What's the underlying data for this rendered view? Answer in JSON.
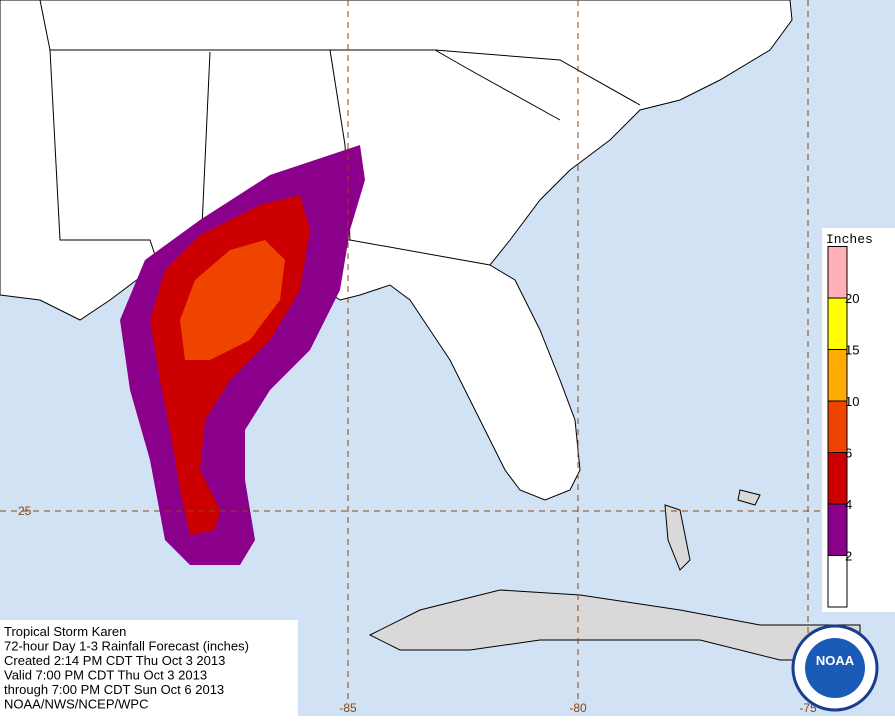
{
  "info_box": {
    "lines": [
      "Tropical Storm Karen",
      "72-hour Day 1-3 Rainfall Forecast (inches)",
      "Created 2:14 PM CDT Thu Oct 3 2013",
      "Valid 7:00 PM CDT Thu Oct 3 2013",
      "through 7:00 PM CDT Sun Oct 6 2013",
      "NOAA/NWS/NCEP/WPC"
    ]
  },
  "grid_labels": {
    "latitude": [
      "25"
    ],
    "longitude": [
      "-85",
      "-80",
      "-75"
    ]
  },
  "legend": {
    "title": "Inches",
    "items": [
      {
        "label": "2",
        "color": "#ffffff"
      },
      {
        "label": "4",
        "color": "#8b008b"
      },
      {
        "label": "6",
        "color": "#cc0000"
      },
      {
        "label": "10",
        "color": "#ee4400"
      },
      {
        "label": "15",
        "color": "#ffaa00"
      },
      {
        "label": "20",
        "color": "#ffff00"
      },
      {
        "label": "",
        "color": "#ffb0b8"
      }
    ]
  },
  "logo": {
    "text": "NOAA"
  }
}
